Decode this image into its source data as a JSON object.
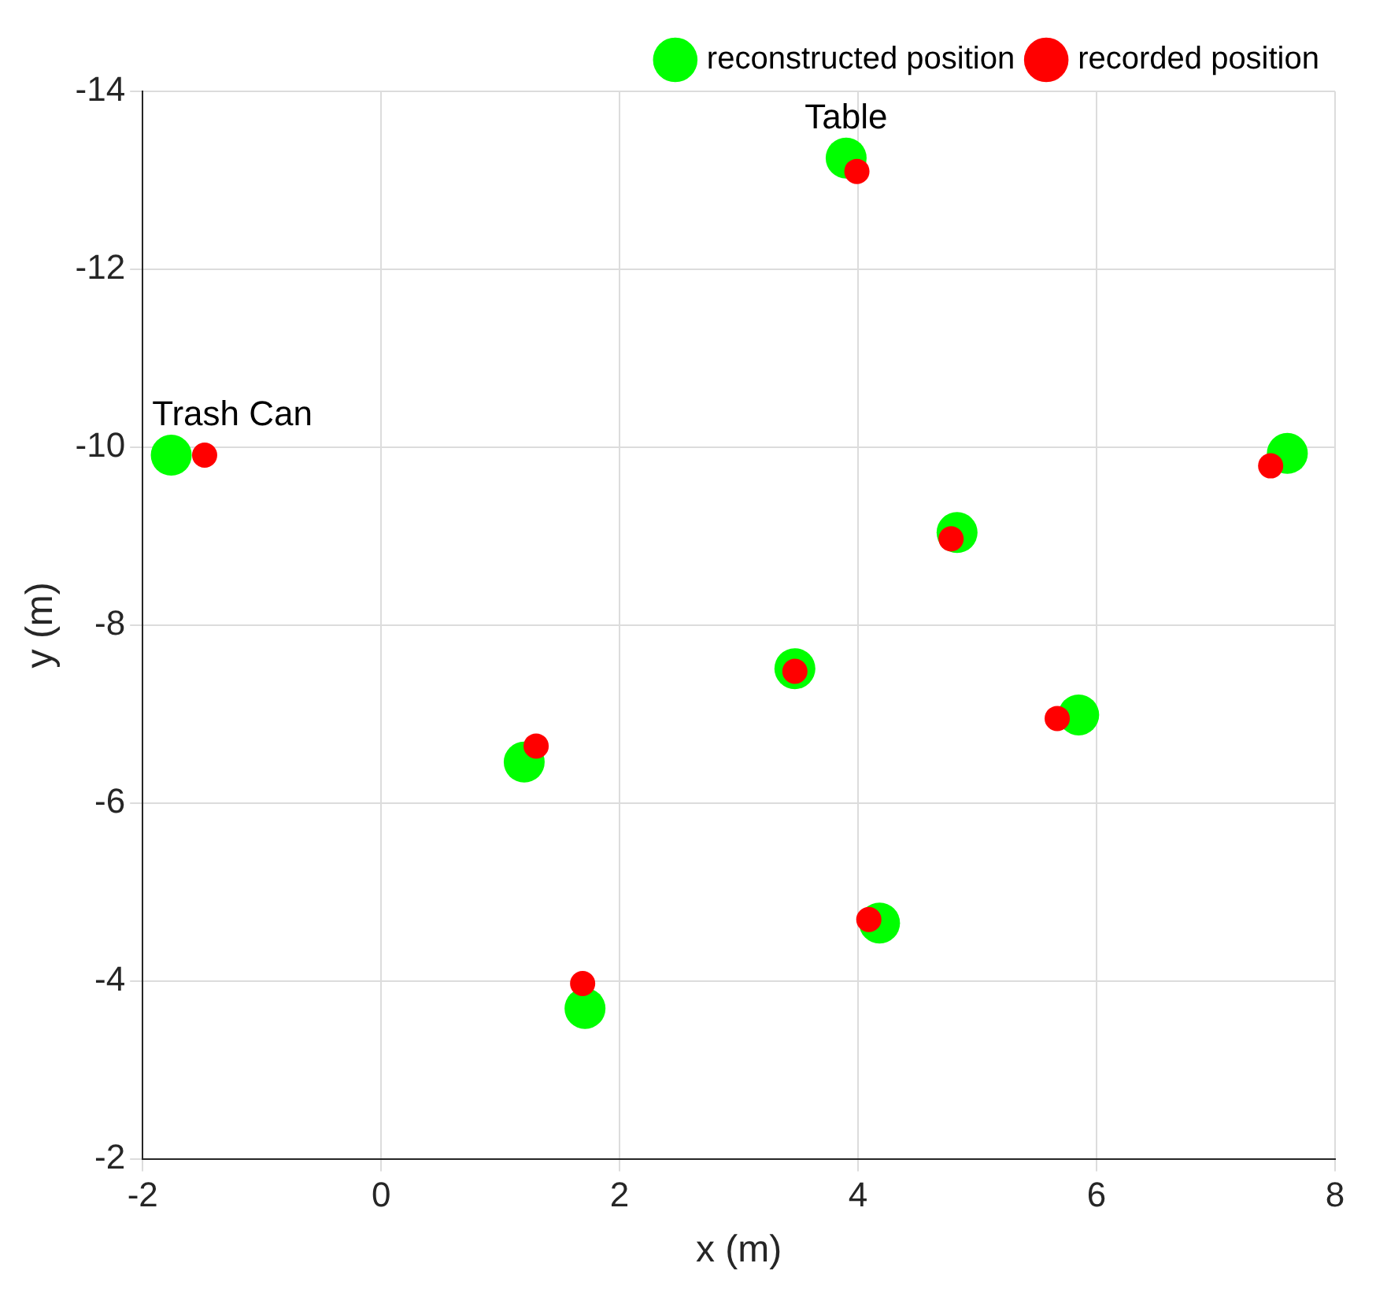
{
  "chart_data": {
    "type": "scatter",
    "xlabel": "x (m)",
    "ylabel": "y (m)",
    "xlim": [
      -2,
      8
    ],
    "xticks": [
      -2,
      0,
      2,
      4,
      6,
      8
    ],
    "ylim": [
      -2,
      -14
    ],
    "yticks": [
      -2,
      -4,
      -6,
      -8,
      -10,
      -12,
      -14
    ],
    "grid": true,
    "legend": "top right",
    "marker": "circle",
    "series": [
      {
        "name": "reconstructed position",
        "color": "#00ff00",
        "x": [
          7.6,
          3.9,
          4.83,
          5.85,
          3.47,
          4.18,
          1.2,
          1.71,
          -1.76
        ],
        "values": [
          -9.93,
          -13.25,
          -9.04,
          -6.99,
          -7.51,
          -4.65,
          -6.46,
          -3.69,
          -9.91
        ]
      },
      {
        "name": "recorded position",
        "color": "#ff0000",
        "x": [
          7.46,
          3.99,
          4.78,
          5.67,
          3.47,
          4.09,
          1.3,
          1.69,
          -1.48
        ],
        "values": [
          -9.79,
          -13.1,
          -8.97,
          -6.95,
          -7.48,
          -4.69,
          -6.64,
          -3.97,
          -9.91
        ]
      }
    ],
    "annotations": [
      {
        "text": "Table",
        "x": 3.9,
        "y": -13.25
      },
      {
        "text": "Trash Can",
        "x": -1.76,
        "y": -9.91
      }
    ]
  }
}
